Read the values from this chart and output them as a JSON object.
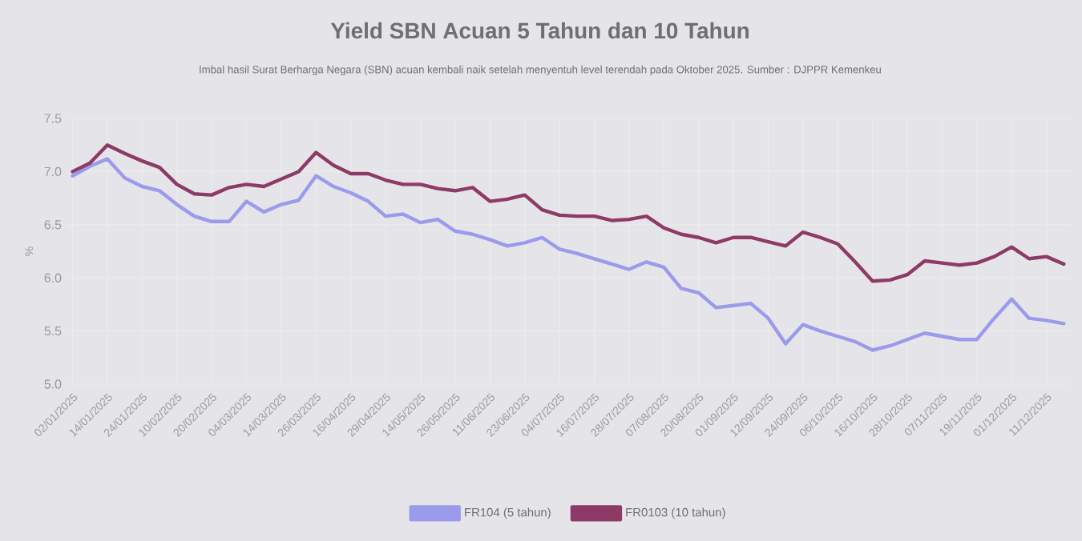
{
  "chart_data": {
    "type": "line",
    "title": "Yield SBN Acuan 5 Tahun dan 10 Tahun",
    "subtitle": "Imbal hasil Surat Berharga Negara (SBN) acuan kembali naik setelah menyentuh level terendah pada Oktober 2025. Sumber : DJPPR Kemenkeu",
    "ylabel": "%",
    "categories": [
      "02/01/2025",
      null,
      "14/01/2025",
      null,
      "24/01/2025",
      null,
      "10/02/2025",
      null,
      "20/02/2025",
      null,
      "04/03/2025",
      null,
      "14/03/2025",
      null,
      "26/03/2025",
      null,
      "16/04/2025",
      null,
      "29/04/2025",
      null,
      "14/05/2025",
      null,
      "26/05/2025",
      null,
      "11/06/2025",
      null,
      "23/06/2025",
      null,
      "04/07/2025",
      null,
      "16/07/2025",
      null,
      "28/07/2025",
      null,
      "07/08/2025",
      null,
      "20/08/2025",
      null,
      "01/09/2025",
      null,
      "12/09/2025",
      null,
      "24/09/2025",
      null,
      "06/10/2025",
      null,
      "16/10/2025",
      null,
      "28/10/2025",
      null,
      "07/11/2025",
      null,
      "19/11/2025",
      null,
      "01/12/2025",
      null,
      "11/12/2025",
      null
    ],
    "series": [
      {
        "name": "FR104 (5 tahun)",
        "color": "#9b9aed",
        "values": [
          6.96,
          7.05,
          7.12,
          6.94,
          6.86,
          6.82,
          6.69,
          6.58,
          6.53,
          6.53,
          6.72,
          6.62,
          6.69,
          6.73,
          6.96,
          6.86,
          6.8,
          6.72,
          6.58,
          6.6,
          6.52,
          6.55,
          6.44,
          6.41,
          6.36,
          6.3,
          6.33,
          6.38,
          6.27,
          6.23,
          6.18,
          6.13,
          6.08,
          6.15,
          6.1,
          5.9,
          5.86,
          5.72,
          5.74,
          5.76,
          5.62,
          5.38,
          5.56,
          5.5,
          5.45,
          5.4,
          5.32,
          5.36,
          5.42,
          5.48,
          5.45,
          5.42,
          5.42,
          5.62,
          5.8,
          5.62,
          5.6,
          5.57
        ]
      },
      {
        "name": "FR0103 (10 tahun)",
        "color": "#8e3a66",
        "values": [
          7.0,
          7.08,
          7.25,
          7.17,
          7.1,
          7.04,
          6.88,
          6.79,
          6.78,
          6.85,
          6.88,
          6.86,
          6.93,
          7.0,
          7.18,
          7.06,
          6.98,
          6.98,
          6.92,
          6.88,
          6.88,
          6.84,
          6.82,
          6.85,
          6.72,
          6.74,
          6.78,
          6.64,
          6.59,
          6.58,
          6.58,
          6.54,
          6.55,
          6.58,
          6.47,
          6.41,
          6.38,
          6.33,
          6.38,
          6.38,
          6.34,
          6.3,
          6.43,
          6.38,
          6.32,
          6.15,
          5.97,
          5.98,
          6.03,
          6.16,
          6.14,
          6.12,
          6.14,
          6.2,
          6.29,
          6.18,
          6.2,
          6.13
        ]
      }
    ],
    "ylim": [
      5.0,
      7.5
    ],
    "yticks": [
      {
        "value": 5.0,
        "label": "5.0"
      },
      {
        "value": 5.5,
        "label": "5.5"
      },
      {
        "value": 6.0,
        "label": "6.0"
      },
      {
        "value": 6.5,
        "label": "6.5"
      },
      {
        "value": 7.0,
        "label": "7.0"
      },
      {
        "value": 7.5,
        "label": "7.5"
      }
    ],
    "grid": true,
    "legend": "bottom",
    "marker": "none",
    "line_style": "solid"
  }
}
